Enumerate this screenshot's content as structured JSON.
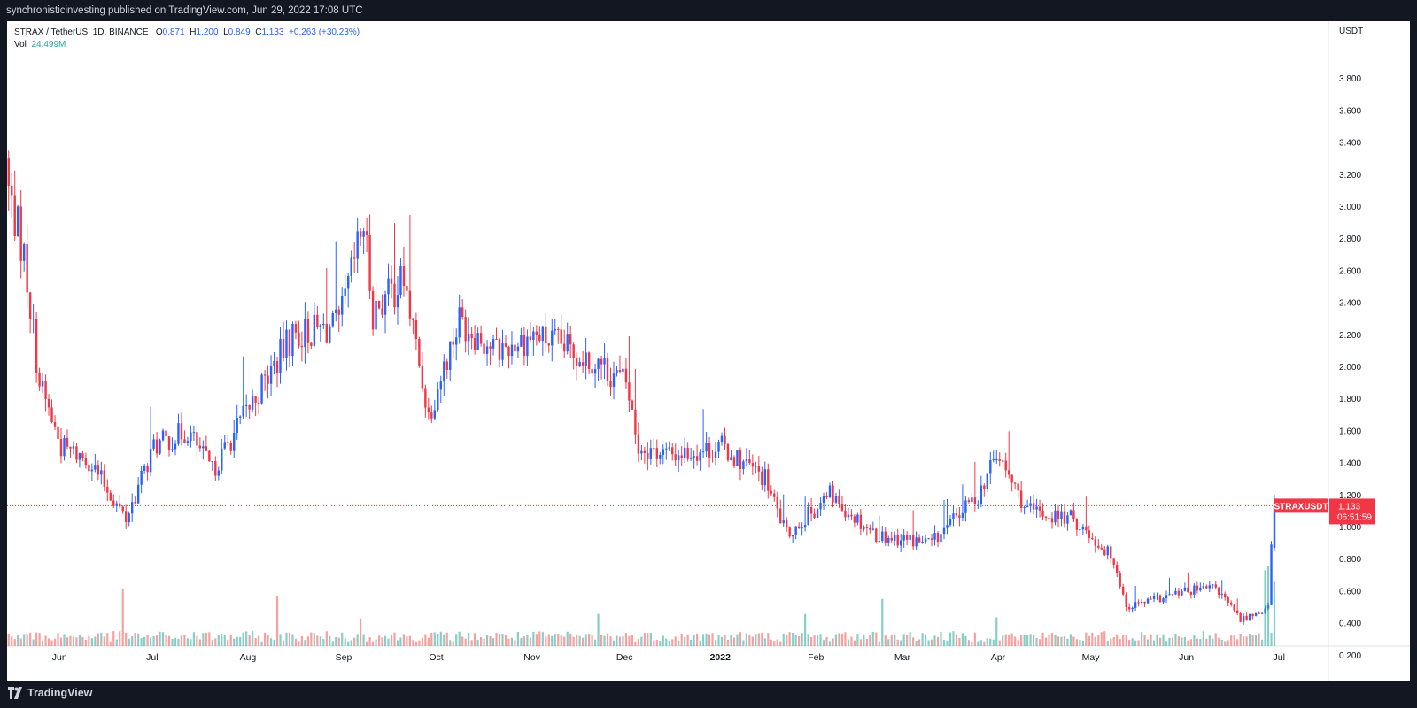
{
  "header": {
    "published_line": "synchronisticinvesting published on TradingView.com, Jun 29, 2022 17:08 UTC"
  },
  "footer": {
    "brand": "TradingView"
  },
  "legend": {
    "symbol_line": "STRAX / TetherUS, 1D, BINANCE",
    "open_label": "O",
    "open": "0.871",
    "high_label": "H",
    "high": "1.200",
    "low_label": "L",
    "low": "0.849",
    "close_label": "C",
    "close": "1.133",
    "change": "+0.263 (+30.23%)",
    "vol_label": "Vol",
    "vol": "24.499M"
  },
  "price_axis": {
    "currency": "USDT",
    "ticks": [
      "3.800",
      "3.600",
      "3.400",
      "3.200",
      "3.000",
      "2.800",
      "2.600",
      "2.400",
      "2.200",
      "2.000",
      "1.800",
      "1.600",
      "1.400",
      "1.200",
      "1.000",
      "0.800",
      "0.600",
      "0.400",
      "0.200"
    ]
  },
  "last_price_tag": {
    "symbol": "STRAXUSDT",
    "price": "1.133",
    "countdown": "06:51:59"
  },
  "colors": {
    "up": "#2962ff",
    "down": "#f23645",
    "vol_up": "#26a69a",
    "vol_down": "#ef5350"
  },
  "chart_data": {
    "type": "candlestick",
    "title": "STRAX / TetherUS, 1D, BINANCE",
    "ylabel": "USDT",
    "ylim": [
      0.1,
      3.9
    ],
    "x_tick_labels": [
      "Jun",
      "Jul",
      "Aug",
      "Sep",
      "Oct",
      "Nov",
      "Dec",
      "2022",
      "Feb",
      "Mar",
      "Apr",
      "May",
      "Jun",
      "Jul"
    ],
    "x_tick_dates": [
      "2021-06-01",
      "2021-07-01",
      "2021-08-01",
      "2021-09-01",
      "2021-10-01",
      "2021-11-01",
      "2021-12-01",
      "2022-01-01",
      "2022-02-01",
      "2022-03-01",
      "2022-04-01",
      "2022-05-01",
      "2022-06-01",
      "2022-07-01"
    ],
    "last_close": 1.133,
    "monthly_path": [
      {
        "date": "2021-05-15",
        "close": 3.1
      },
      {
        "date": "2021-05-20",
        "close": 2.7
      },
      {
        "date": "2021-05-25",
        "close": 1.9
      },
      {
        "date": "2021-06-01",
        "close": 1.5
      },
      {
        "date": "2021-06-10",
        "close": 1.42
      },
      {
        "date": "2021-06-22",
        "close": 1.05
      },
      {
        "date": "2021-07-01",
        "close": 1.5
      },
      {
        "date": "2021-07-12",
        "close": 1.6
      },
      {
        "date": "2021-07-20",
        "close": 1.35
      },
      {
        "date": "2021-08-01",
        "close": 1.75
      },
      {
        "date": "2021-08-15",
        "close": 2.2
      },
      {
        "date": "2021-08-30",
        "close": 2.25
      },
      {
        "date": "2021-09-07",
        "close": 2.9
      },
      {
        "date": "2021-09-10",
        "close": 2.35
      },
      {
        "date": "2021-09-20",
        "close": 2.55
      },
      {
        "date": "2021-09-28",
        "close": 1.7
      },
      {
        "date": "2021-10-08",
        "close": 2.3
      },
      {
        "date": "2021-10-20",
        "close": 2.1
      },
      {
        "date": "2021-11-01",
        "close": 2.2
      },
      {
        "date": "2021-11-20",
        "close": 2.05
      },
      {
        "date": "2021-12-01",
        "close": 1.9
      },
      {
        "date": "2021-12-05",
        "close": 1.5
      },
      {
        "date": "2021-12-15",
        "close": 1.45
      },
      {
        "date": "2022-01-01",
        "close": 1.5
      },
      {
        "date": "2022-01-15",
        "close": 1.3
      },
      {
        "date": "2022-01-22",
        "close": 0.95
      },
      {
        "date": "2022-02-05",
        "close": 1.2
      },
      {
        "date": "2022-02-20",
        "close": 0.95
      },
      {
        "date": "2022-03-10",
        "close": 0.9
      },
      {
        "date": "2022-03-25",
        "close": 1.2
      },
      {
        "date": "2022-03-31",
        "close": 1.45
      },
      {
        "date": "2022-04-10",
        "close": 1.1
      },
      {
        "date": "2022-04-25",
        "close": 1.05
      },
      {
        "date": "2022-05-08",
        "close": 0.8
      },
      {
        "date": "2022-05-12",
        "close": 0.5
      },
      {
        "date": "2022-06-01",
        "close": 0.6
      },
      {
        "date": "2022-06-10",
        "close": 0.62
      },
      {
        "date": "2022-06-18",
        "close": 0.42
      },
      {
        "date": "2022-06-27",
        "close": 0.5
      },
      {
        "date": "2022-06-28",
        "close": 0.871
      },
      {
        "date": "2022-06-29",
        "close": 1.133
      }
    ],
    "volume_spikes": [
      {
        "date": "2021-06-21",
        "volume": 0.5
      },
      {
        "date": "2021-08-10",
        "volume": 0.43
      },
      {
        "date": "2021-09-06",
        "volume": 0.24
      },
      {
        "date": "2021-11-22",
        "volume": 0.28
      },
      {
        "date": "2022-01-28",
        "volume": 0.28
      },
      {
        "date": "2022-02-22",
        "volume": 0.41
      },
      {
        "date": "2022-03-31",
        "volume": 0.25
      },
      {
        "date": "2022-06-26",
        "volume": 0.66
      },
      {
        "date": "2022-06-27",
        "volume": 0.7
      },
      {
        "date": "2022-06-29",
        "volume": 0.56
      }
    ]
  }
}
